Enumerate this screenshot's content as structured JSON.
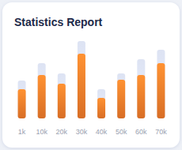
{
  "chart_data": {
    "type": "bar",
    "title": "Statistics Report",
    "categories": [
      "1k",
      "10k",
      "20k",
      "30k",
      "40k",
      "50k",
      "60k",
      "70k"
    ],
    "series": [
      {
        "color": "#dde3f3",
        "values": [
          48,
          70,
          57,
          98,
          37,
          57,
          75,
          87
        ]
      },
      {
        "color": "#f07a2a",
        "values": [
          37,
          55,
          44,
          82,
          26,
          49,
          55,
          70
        ]
      }
    ],
    "ylim": [
      0,
      100
    ],
    "tick_labels": "x",
    "grid": false
  }
}
